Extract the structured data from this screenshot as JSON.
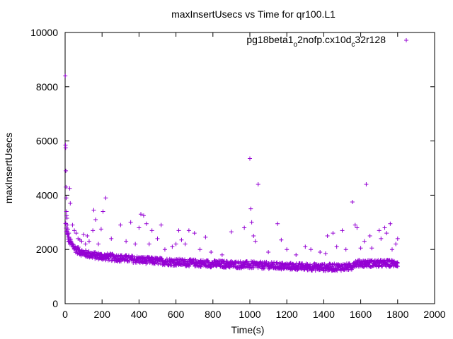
{
  "chart_data": {
    "type": "scatter",
    "title": "maxInsertUsecs vs Time for qr100.L1",
    "xlabel": "Time(s)",
    "ylabel": "maxInsertUsecs",
    "xlim": [
      0,
      2000
    ],
    "ylim": [
      0,
      10000
    ],
    "x_ticks": [
      "0",
      "200",
      "400",
      "600",
      "800",
      "1000",
      "1200",
      "1400",
      "1600",
      "1800",
      "2000"
    ],
    "y_ticks": [
      "0",
      "2000",
      "4000",
      "6000",
      "8000",
      "10000"
    ],
    "grid": false,
    "legend_position": "top-right",
    "marker": "plus",
    "series": [
      {
        "name": "pg18beta1_o2nofp.cx10d_c32r128",
        "legend_main": "pg18beta1",
        "legend_sub1": "o",
        "legend_mid": "2nofp.cx10d",
        "legend_sub2": "c",
        "legend_tail": "32r128",
        "color": "#9400d3",
        "trend": [
          [
            0,
            3000
          ],
          [
            5,
            2700
          ],
          [
            10,
            2500
          ],
          [
            20,
            2300
          ],
          [
            40,
            2100
          ],
          [
            60,
            1950
          ],
          [
            100,
            1820
          ],
          [
            150,
            1750
          ],
          [
            200,
            1700
          ],
          [
            300,
            1640
          ],
          [
            400,
            1580
          ],
          [
            500,
            1530
          ],
          [
            600,
            1490
          ],
          [
            700,
            1460
          ],
          [
            800,
            1430
          ],
          [
            900,
            1410
          ],
          [
            1000,
            1390
          ],
          [
            1100,
            1370
          ],
          [
            1200,
            1340
          ],
          [
            1300,
            1320
          ],
          [
            1400,
            1300
          ],
          [
            1500,
            1310
          ],
          [
            1550,
            1320
          ],
          [
            1560,
            1450
          ],
          [
            1600,
            1450
          ],
          [
            1700,
            1440
          ],
          [
            1800,
            1450
          ]
        ],
        "points": [
          [
            1,
            8400
          ],
          [
            2,
            5850
          ],
          [
            3,
            5750
          ],
          [
            4,
            4900
          ],
          [
            5,
            4300
          ],
          [
            6,
            3900
          ],
          [
            7,
            3400
          ],
          [
            8,
            3250
          ],
          [
            10,
            3150
          ],
          [
            12,
            2900
          ],
          [
            15,
            2750
          ],
          [
            20,
            2600
          ],
          [
            25,
            4250
          ],
          [
            28,
            3700
          ],
          [
            40,
            2900
          ],
          [
            50,
            2700
          ],
          [
            60,
            2600
          ],
          [
            70,
            2400
          ],
          [
            80,
            2350
          ],
          [
            90,
            2300
          ],
          [
            100,
            2550
          ],
          [
            110,
            2200
          ],
          [
            120,
            2500
          ],
          [
            130,
            2300
          ],
          [
            150,
            2700
          ],
          [
            155,
            3450
          ],
          [
            165,
            3100
          ],
          [
            180,
            2200
          ],
          [
            195,
            2750
          ],
          [
            205,
            3400
          ],
          [
            220,
            3900
          ],
          [
            250,
            2400
          ],
          [
            300,
            2900
          ],
          [
            330,
            2300
          ],
          [
            355,
            3000
          ],
          [
            380,
            2200
          ],
          [
            400,
            2800
          ],
          [
            410,
            3300
          ],
          [
            425,
            3250
          ],
          [
            440,
            2950
          ],
          [
            455,
            2200
          ],
          [
            470,
            2700
          ],
          [
            500,
            2400
          ],
          [
            520,
            2900
          ],
          [
            540,
            2000
          ],
          [
            580,
            2100
          ],
          [
            600,
            2200
          ],
          [
            615,
            2700
          ],
          [
            630,
            2350
          ],
          [
            650,
            2200
          ],
          [
            670,
            2700
          ],
          [
            700,
            2600
          ],
          [
            730,
            2000
          ],
          [
            760,
            2450
          ],
          [
            790,
            1900
          ],
          [
            850,
            1800
          ],
          [
            900,
            2650
          ],
          [
            970,
            2800
          ],
          [
            1000,
            5350
          ],
          [
            1005,
            3500
          ],
          [
            1010,
            3000
          ],
          [
            1020,
            2500
          ],
          [
            1030,
            2300
          ],
          [
            1045,
            4400
          ],
          [
            1100,
            1900
          ],
          [
            1150,
            2950
          ],
          [
            1170,
            2350
          ],
          [
            1200,
            2000
          ],
          [
            1250,
            1800
          ],
          [
            1300,
            2100
          ],
          [
            1330,
            2000
          ],
          [
            1380,
            1900
          ],
          [
            1410,
            1850
          ],
          [
            1420,
            2500
          ],
          [
            1450,
            2600
          ],
          [
            1470,
            2100
          ],
          [
            1500,
            2700
          ],
          [
            1520,
            2000
          ],
          [
            1555,
            3750
          ],
          [
            1570,
            2900
          ],
          [
            1580,
            2800
          ],
          [
            1600,
            2050
          ],
          [
            1620,
            2300
          ],
          [
            1630,
            4400
          ],
          [
            1650,
            2500
          ],
          [
            1660,
            2050
          ],
          [
            1700,
            2700
          ],
          [
            1710,
            2400
          ],
          [
            1730,
            2800
          ],
          [
            1740,
            2600
          ],
          [
            1760,
            2950
          ],
          [
            1770,
            2000
          ],
          [
            1790,
            2200
          ],
          [
            1800,
            2400
          ]
        ]
      }
    ]
  }
}
